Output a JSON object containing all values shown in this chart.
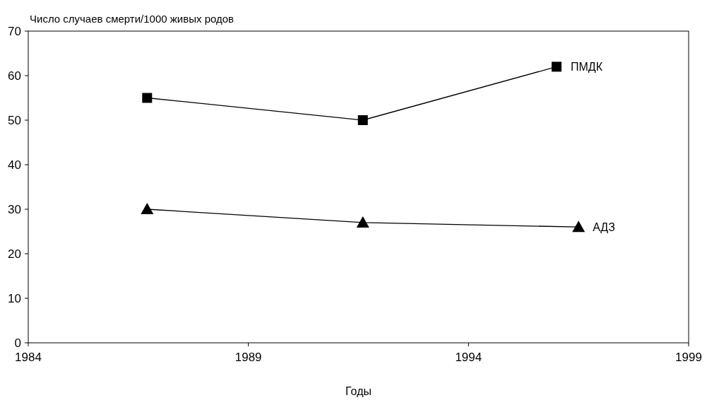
{
  "chart_data": {
    "type": "line",
    "ylabel": "Число случаев смерти/1000 живых родов",
    "xlabel": "Годы",
    "xlim": [
      1984,
      1999
    ],
    "xticks": [
      1984,
      1989,
      1994,
      1999
    ],
    "ylim": [
      0,
      70
    ],
    "yticks": [
      0,
      10,
      20,
      30,
      40,
      50,
      60,
      70
    ],
    "grid": false,
    "series": [
      {
        "name": "ПМДК",
        "color": "#000000",
        "marker": "square",
        "x": [
          1986.7,
          1991.6,
          1996.0
        ],
        "values": [
          55,
          50,
          62
        ]
      },
      {
        "name": "АДЗ",
        "color": "#000000",
        "marker": "triangle",
        "x": [
          1986.7,
          1991.6,
          1996.5
        ],
        "values": [
          30,
          27,
          26
        ]
      }
    ]
  }
}
